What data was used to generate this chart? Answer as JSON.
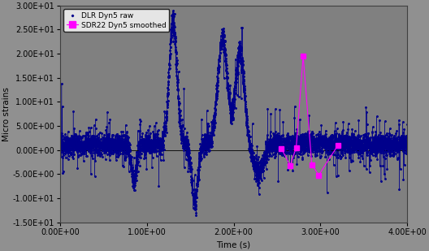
{
  "background_color": "#909090",
  "plot_bg_color": "#808080",
  "raw_color": "#00008B",
  "smoothed_color": "#FF00FF",
  "raw_label": "DLR Dyn5 raw",
  "smoothed_label": "SDR22 Dyn5 smoothed",
  "xlabel": "Time (s)",
  "ylabel": "Micro strains",
  "xlim": [
    0.0,
    4.0
  ],
  "ylim": [
    -15.0,
    30.0
  ],
  "yticks": [
    -15,
    -10,
    -5,
    0,
    5,
    10,
    15,
    20,
    25,
    30
  ],
  "xticks": [
    0.0,
    1.0,
    2.0,
    3.0,
    4.0
  ],
  "axis_fontsize": 7.5,
  "tick_fontsize": 7
}
